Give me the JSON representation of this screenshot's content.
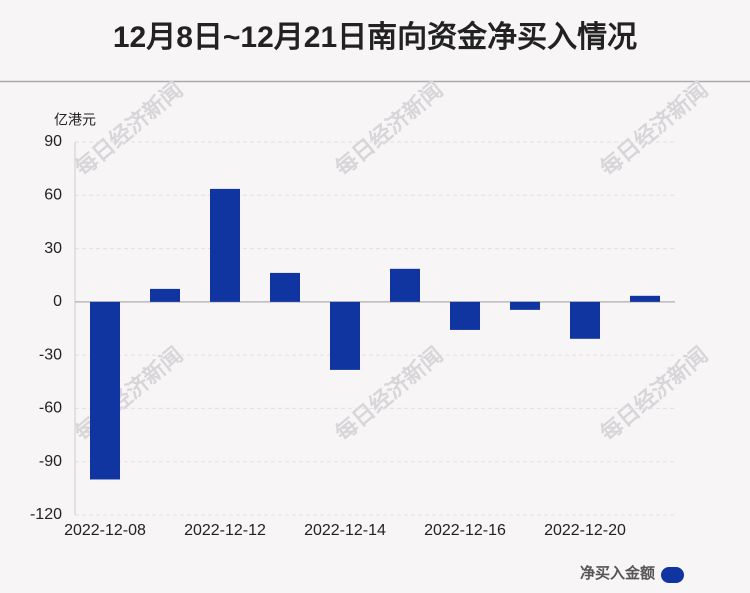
{
  "chart_data": {
    "type": "bar",
    "title": "12月8日~12月21日南向资金净买入情况",
    "y_label": "亿港元",
    "watermark": "每日经济新闻",
    "categories": [
      "2022-12-08",
      null,
      "2022-12-12",
      null,
      "2022-12-14",
      null,
      "2022-12-16",
      null,
      "2022-12-20",
      null
    ],
    "series": [
      {
        "name": "净买入金额",
        "color": "#1034a0",
        "values": [
          -100,
          7.3,
          63.6,
          16.3,
          -38.3,
          18.6,
          -15.8,
          -4.5,
          -20.8,
          3.4
        ]
      }
    ],
    "ylim": [
      -120,
      90
    ],
    "yticks": [
      90,
      60,
      30,
      0,
      -30,
      -60,
      -90,
      -120
    ],
    "grid": true
  }
}
